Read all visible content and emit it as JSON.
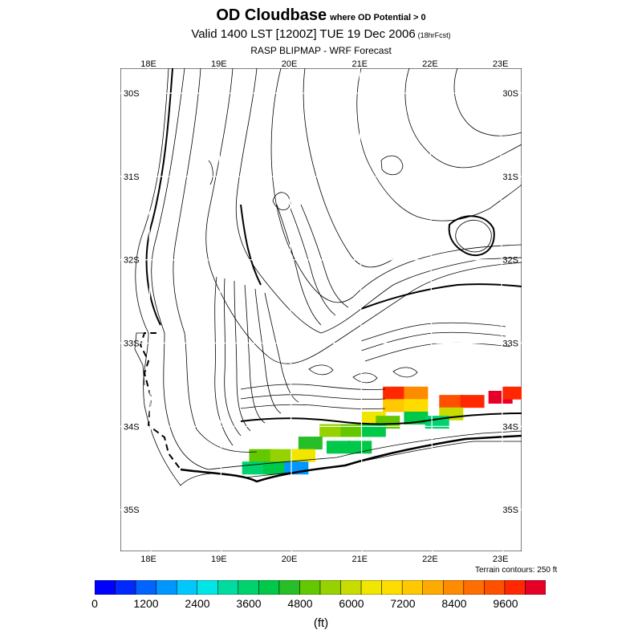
{
  "header": {
    "title_main": "OD Cloudbase",
    "title_condition": "where OD Potential > 0",
    "valid_line": "Valid 1400 LST [1200Z] TUE 19 Dec 2006",
    "forecast_hours": "(18hrFcst)",
    "subtitle": "RASP BLIPMAP - WRF Forecast"
  },
  "map": {
    "lon_labels_top": [
      "18E",
      "19E",
      "20E",
      "21E",
      "22E",
      "23E"
    ],
    "lon_labels_bottom": [
      "18E",
      "19E",
      "20E",
      "21E",
      "22E",
      "23E"
    ],
    "lat_labels_left": [
      "30S",
      "31S",
      "32S",
      "33S",
      "34S",
      "35S"
    ],
    "lat_labels_right": [
      "30S",
      "31S",
      "32S",
      "33S",
      "34S",
      "35S"
    ],
    "terrain_note": "Terrain contours: 250 ft",
    "extent": {
      "lon_min": 17.6,
      "lon_max": 23.3,
      "lat_max": 29.7,
      "lat_min": 35.5
    },
    "field_cells": [
      {
        "lon": 21.5,
        "lat": 33.6,
        "value": 9600
      },
      {
        "lon": 21.8,
        "lat": 33.6,
        "value": 8400
      },
      {
        "lon": 21.5,
        "lat": 33.75,
        "value": 7200
      },
      {
        "lon": 21.8,
        "lat": 33.75,
        "value": 7000
      },
      {
        "lon": 22.3,
        "lat": 33.7,
        "value": 9400
      },
      {
        "lon": 22.6,
        "lat": 33.7,
        "value": 9800
      },
      {
        "lon": 23.0,
        "lat": 33.65,
        "value": 10000
      },
      {
        "lon": 23.2,
        "lat": 33.6,
        "value": 9600
      },
      {
        "lon": 22.3,
        "lat": 33.85,
        "value": 6000
      },
      {
        "lon": 21.2,
        "lat": 33.9,
        "value": 6600
      },
      {
        "lon": 21.4,
        "lat": 33.95,
        "value": 5000
      },
      {
        "lon": 21.8,
        "lat": 33.9,
        "value": 4200
      },
      {
        "lon": 22.1,
        "lat": 33.95,
        "value": 3600
      },
      {
        "lon": 20.6,
        "lat": 34.05,
        "value": 5200
      },
      {
        "lon": 20.9,
        "lat": 34.05,
        "value": 4800
      },
      {
        "lon": 21.2,
        "lat": 34.05,
        "value": 4000
      },
      {
        "lon": 20.3,
        "lat": 34.2,
        "value": 4600
      },
      {
        "lon": 20.7,
        "lat": 34.25,
        "value": 4200
      },
      {
        "lon": 21.0,
        "lat": 34.25,
        "value": 3800
      },
      {
        "lon": 19.6,
        "lat": 34.35,
        "value": 4800
      },
      {
        "lon": 19.9,
        "lat": 34.35,
        "value": 5400
      },
      {
        "lon": 20.2,
        "lat": 34.35,
        "value": 6200
      },
      {
        "lon": 19.5,
        "lat": 34.5,
        "value": 3600
      },
      {
        "lon": 19.8,
        "lat": 34.5,
        "value": 3800
      },
      {
        "lon": 20.1,
        "lat": 34.5,
        "value": 1500
      }
    ]
  },
  "colorbar": {
    "tick_labels": [
      "0",
      "1200",
      "2400",
      "3600",
      "4800",
      "6000",
      "7200",
      "8400",
      "9600"
    ],
    "colors": [
      "#0000ff",
      "#0028ff",
      "#0064ff",
      "#0096ff",
      "#00c8ff",
      "#00e6e6",
      "#00dca0",
      "#00d26e",
      "#00c848",
      "#28be28",
      "#64c800",
      "#96d200",
      "#c8dc00",
      "#f0e600",
      "#ffdc00",
      "#ffc800",
      "#ffaa00",
      "#ff8c00",
      "#ff6e00",
      "#ff5000",
      "#ff2800",
      "#e60028"
    ],
    "unit": "(ft)"
  }
}
